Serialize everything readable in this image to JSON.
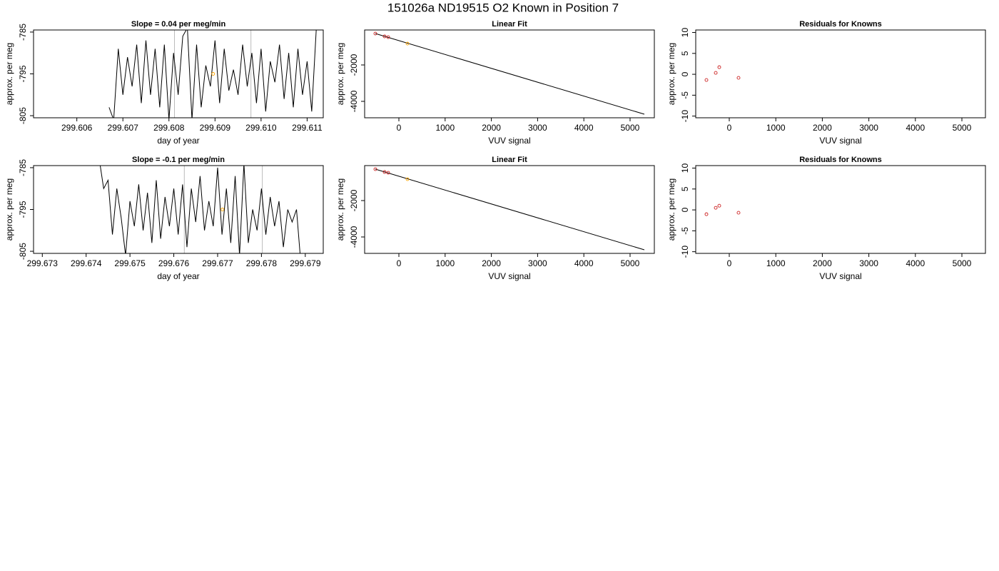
{
  "title": "151026a     ND19515   O2 Known in Position  7",
  "chart_data": [
    {
      "type": "line",
      "title": "Slope =  0.04  per meg/min",
      "xlabel": "day of year",
      "ylabel": "approx. per meg",
      "xlim": [
        299.60506,
        299.61135
      ],
      "ylim": [
        -805.5,
        -784.5
      ],
      "xticks": [
        299.606,
        299.607,
        299.608,
        299.609,
        {
          "value": 299.61,
          "label": "299.610"
        },
        299.611
      ],
      "yticks": [
        -785,
        -795,
        -805
      ],
      "vlines": [
        299.60812,
        299.60978
      ],
      "vline_color": "#bbbbbb",
      "series": [
        {
          "color": "#000000",
          "lines": true,
          "x": [
            299.6067,
            299.6068,
            299.6069,
            299.607,
            299.6071,
            299.6072,
            299.6073,
            299.6074,
            299.6075,
            299.6076,
            299.6077,
            299.6078,
            299.6079,
            299.608,
            299.6081,
            299.6082,
            299.6083,
            299.6084,
            299.6085,
            299.6086,
            299.6087,
            299.6088,
            299.6089,
            299.609,
            299.6091,
            299.6092,
            299.6093,
            299.6094,
            299.6095,
            299.6096,
            299.6097,
            299.6098,
            299.6099,
            299.61,
            299.6101,
            299.6102,
            299.6103,
            299.6104,
            299.6105,
            299.6106,
            299.6107,
            299.6108,
            299.6109,
            299.611,
            299.6111,
            299.6112
          ],
          "values": [
            -803,
            -806,
            -789,
            -800,
            -791,
            -798,
            -788,
            -802,
            -787,
            -800,
            -789,
            -803,
            -788,
            -806,
            -790,
            -800,
            -786,
            -784,
            -806,
            -788,
            -803,
            -793,
            -798,
            -787,
            -802,
            -789,
            -799,
            -794,
            -800,
            -788,
            -798,
            -790,
            -802,
            -789,
            -804,
            -792,
            -797,
            -788,
            -801,
            -790,
            -803,
            -789,
            -800,
            -792,
            -804,
            -784
          ]
        },
        {
          "color": "#ffa500",
          "lines": false,
          "x": [
            299.60896
          ],
          "values": [
            -795
          ]
        }
      ]
    },
    {
      "type": "scatter",
      "title": "Linear Fit",
      "xlabel": "VUV signal",
      "ylabel": "approx. per meg",
      "xlim": [
        -741,
        5525
      ],
      "ylim": [
        -4902,
        -78
      ],
      "xticks": [
        0,
        1000,
        2000,
        3000,
        4000,
        5000
      ],
      "yticks": [
        -2000,
        -4000
      ],
      "series": [
        {
          "color": "#000000",
          "lines": true,
          "x": [
            -509,
            5309
          ],
          "values": [
            -275,
            -4706
          ]
        },
        {
          "color": "#cc2222",
          "lines": false,
          "x": [
            -509,
            -309,
            -231
          ],
          "values": [
            -275,
            -431,
            -471
          ]
        },
        {
          "color": "#ffa500",
          "lines": false,
          "x": [
            185
          ],
          "values": [
            -824
          ]
        }
      ]
    },
    {
      "type": "scatter",
      "title": "Residuals for Knowns",
      "xlabel": "VUV signal",
      "ylabel": "approx. per meg",
      "xlim": [
        -721,
        5506
      ],
      "ylim": [
        -10.4,
        10.6
      ],
      "xticks": [
        0,
        1000,
        2000,
        3000,
        4000,
        5000
      ],
      "yticks": [
        10,
        5,
        0,
        -5,
        -10
      ],
      "series": [
        {
          "color": "#cc2222",
          "lines": false,
          "x": [
            -491,
            -291,
            -215,
            199
          ],
          "values": [
            -1.37,
            0.34,
            1.7,
            -0.85
          ]
        }
      ]
    },
    {
      "type": "line",
      "title": "Slope =  -0.1  per meg/min",
      "xlabel": "day of year",
      "ylabel": "approx. per meg",
      "xlim": [
        299.6728,
        299.67941
      ],
      "ylim": [
        -805.5,
        -784.5
      ],
      "xticks": [
        299.673,
        299.674,
        299.675,
        299.676,
        299.677,
        299.678,
        299.679
      ],
      "yticks": [
        -785,
        -795,
        -805
      ],
      "vlines": [
        299.67624,
        299.67802
      ],
      "vline_color": "#bbbbbb",
      "series": [
        {
          "color": "#000000",
          "lines": true,
          "x": [
            299.6743,
            299.6744,
            299.6745,
            299.6746,
            299.6747,
            299.6748,
            299.6749,
            299.675,
            299.6751,
            299.6752,
            299.6753,
            299.6754,
            299.6755,
            299.6756,
            299.6757,
            299.6758,
            299.6759,
            299.676,
            299.6761,
            299.6762,
            299.6763,
            299.6764,
            299.6765,
            299.6766,
            299.6767,
            299.6768,
            299.6769,
            299.677,
            299.6771,
            299.6772,
            299.6773,
            299.6774,
            299.6775,
            299.6776,
            299.6777,
            299.6778,
            299.6779,
            299.678,
            299.6781,
            299.6782,
            299.6783,
            299.6784,
            299.6785,
            299.6786,
            299.6787,
            299.6788,
            299.6789
          ],
          "values": [
            -783,
            -790,
            -788,
            -801,
            -790,
            -797,
            -806,
            -793,
            -799,
            -789,
            -800,
            -791,
            -803,
            -788,
            -802,
            -792,
            -799,
            -790,
            -801,
            -789,
            -804,
            -790,
            -798,
            -787,
            -800,
            -793,
            -799,
            -785,
            -801,
            -790,
            -803,
            -787,
            -806,
            -784,
            -803,
            -795,
            -800,
            -790,
            -801,
            -792,
            -799,
            -793,
            -804,
            -795,
            -798,
            -795,
            -808
          ]
        },
        {
          "color": "#ffa500",
          "lines": false,
          "x": [
            299.67711
          ],
          "values": [
            -795
          ]
        }
      ]
    },
    {
      "type": "scatter",
      "title": "Linear Fit",
      "xlabel": "VUV signal",
      "ylabel": "approx. per meg",
      "xlim": [
        -741,
        5525
      ],
      "ylim": [
        -4902,
        -78
      ],
      "xticks": [
        0,
        1000,
        2000,
        3000,
        4000,
        5000
      ],
      "yticks": [
        -2000,
        -4000
      ],
      "series": [
        {
          "color": "#000000",
          "lines": true,
          "x": [
            -509,
            5309
          ],
          "values": [
            -275,
            -4706
          ]
        },
        {
          "color": "#cc2222",
          "lines": false,
          "x": [
            -509,
            -309,
            -231
          ],
          "values": [
            -275,
            -431,
            -471
          ]
        },
        {
          "color": "#ffa500",
          "lines": false,
          "x": [
            185
          ],
          "values": [
            -824
          ]
        }
      ]
    },
    {
      "type": "scatter",
      "title": "Residuals for Knowns",
      "xlabel": "VUV signal",
      "ylabel": "approx. per meg",
      "xlim": [
        -721,
        5506
      ],
      "ylim": [
        -10.4,
        10.6
      ],
      "xticks": [
        0,
        1000,
        2000,
        3000,
        4000,
        5000
      ],
      "yticks": [
        10,
        5,
        0,
        -5,
        -10
      ],
      "series": [
        {
          "color": "#cc2222",
          "lines": false,
          "x": [
            -491,
            -291,
            -215,
            199
          ],
          "values": [
            -1.03,
            0.5,
            1.0,
            -0.68
          ]
        }
      ]
    }
  ]
}
